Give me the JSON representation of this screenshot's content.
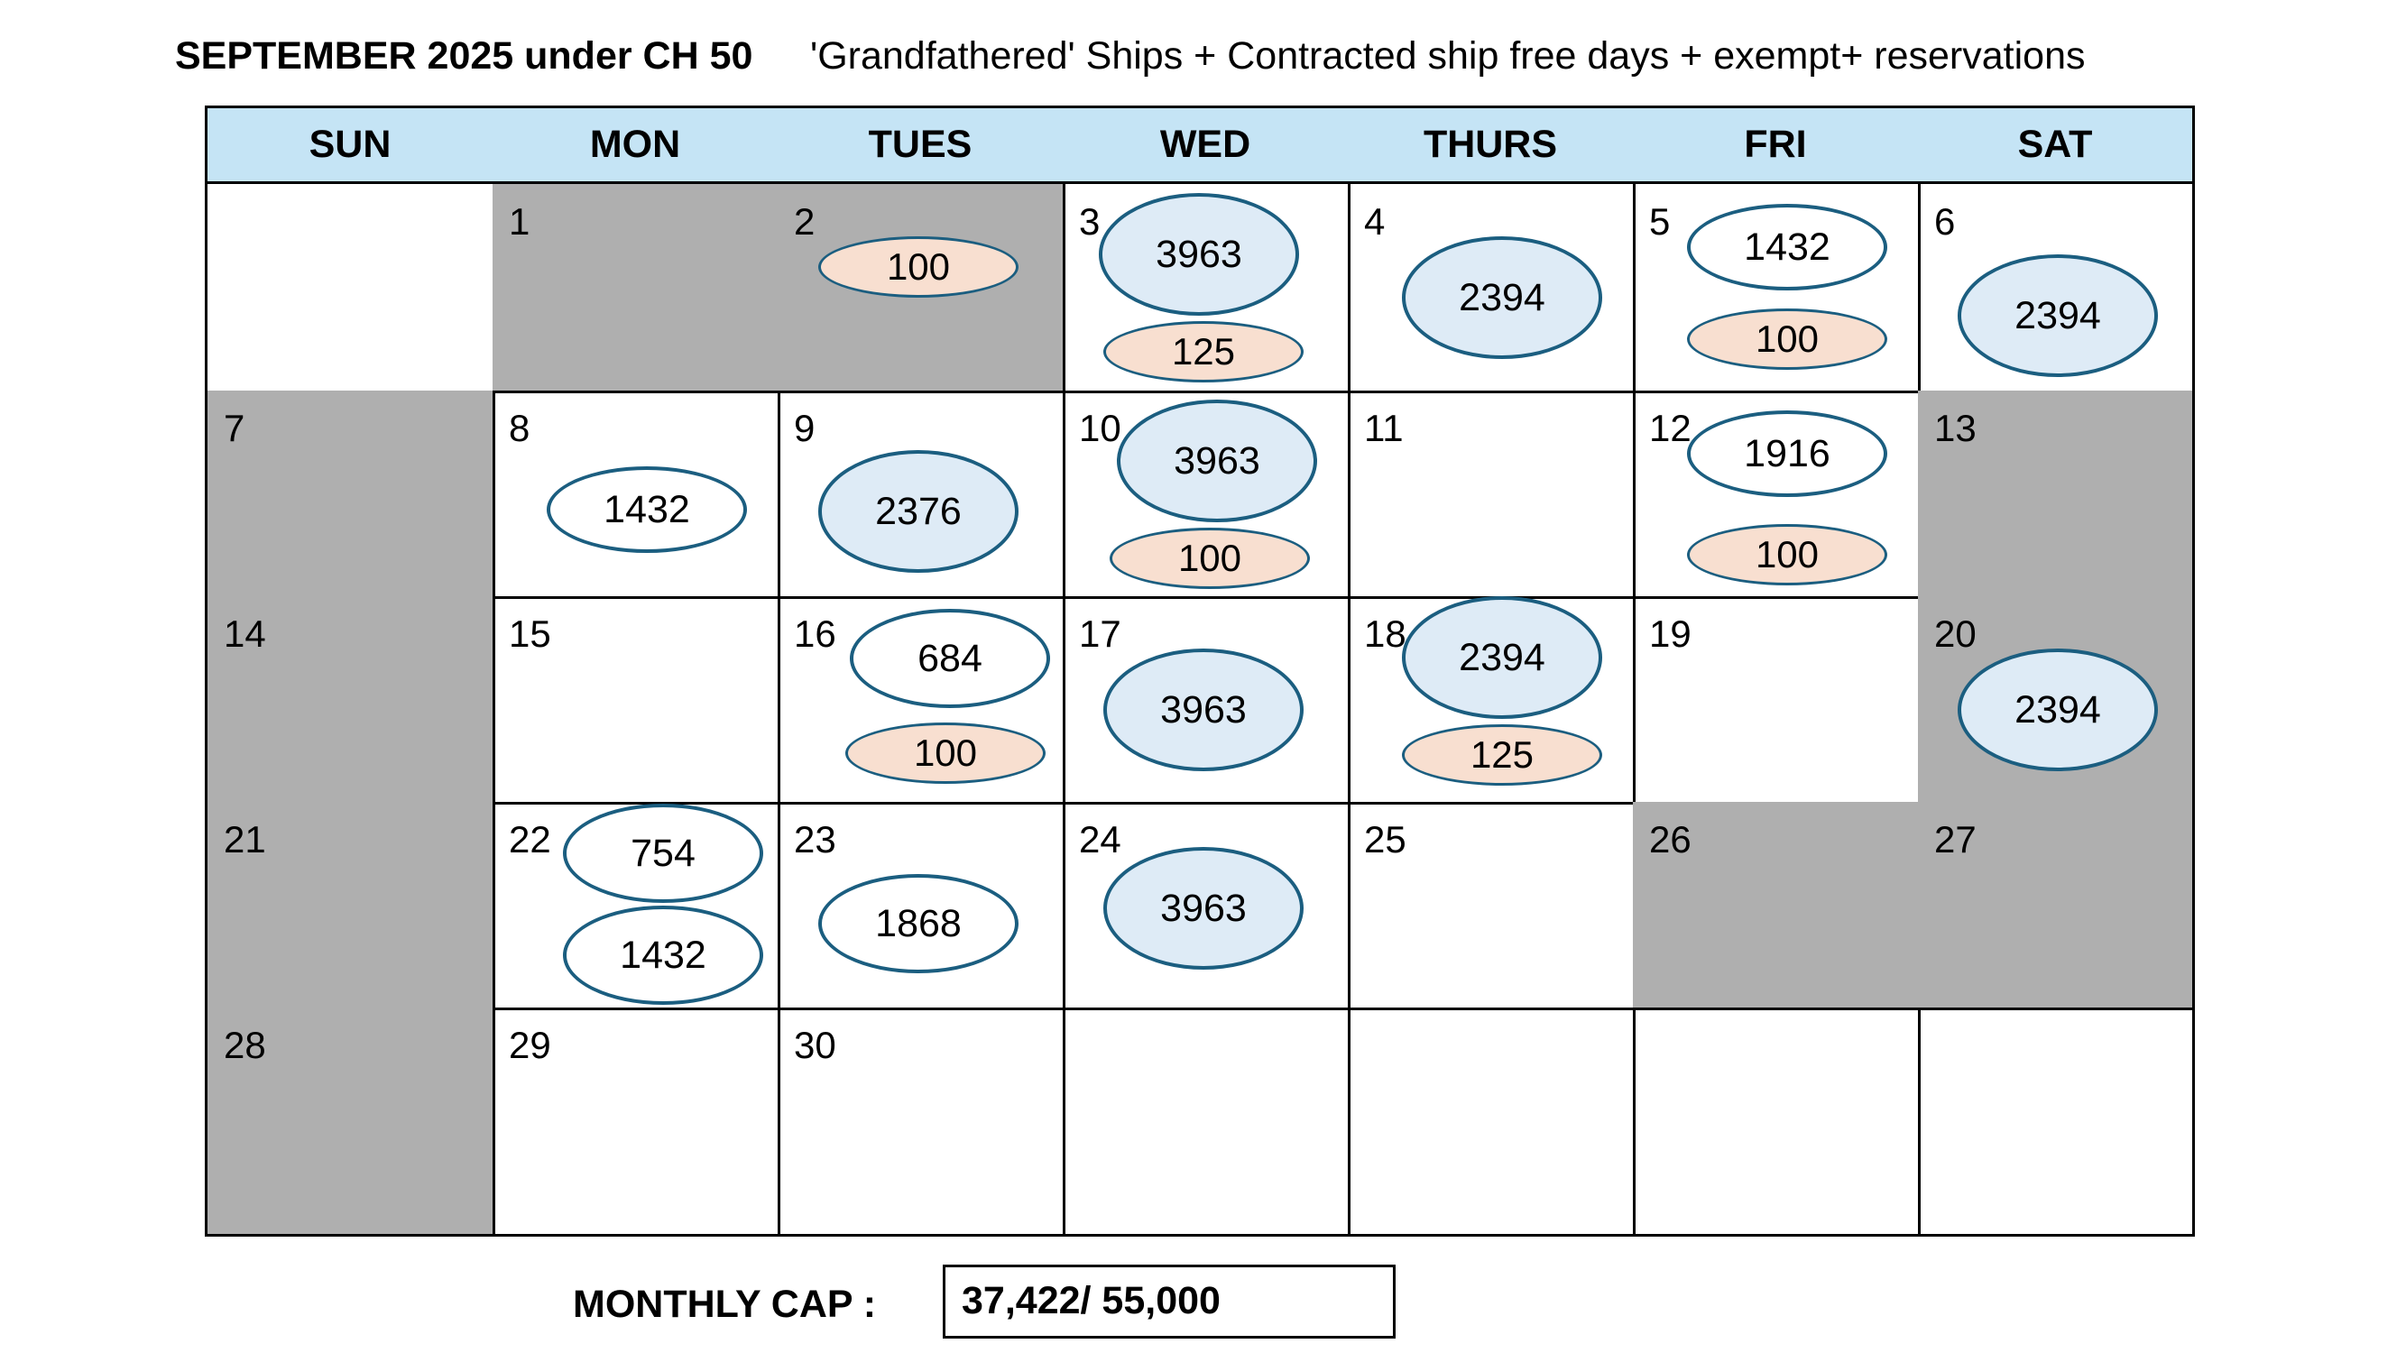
{
  "title": {
    "main": "SEPTEMBER 2025 under CH 50",
    "subtitle": "'Grandfathered' Ships  +  Contracted ship free days + exempt+ reservations"
  },
  "weekdays": [
    "SUN",
    "MON",
    "TUES",
    "WED",
    "THURS",
    "FRI",
    "SAT"
  ],
  "weeks": [
    [
      {
        "day": "",
        "gray": false,
        "ovals": []
      },
      {
        "day": "1",
        "gray": true,
        "ovals": []
      },
      {
        "day": "2",
        "gray": true,
        "ovals": [
          {
            "value": "100",
            "kind": "res"
          }
        ]
      },
      {
        "day": "3",
        "gray": false,
        "ovals": [
          {
            "value": "3963",
            "kind": "ship"
          },
          {
            "value": "125",
            "kind": "res"
          }
        ]
      },
      {
        "day": "4",
        "gray": false,
        "ovals": [
          {
            "value": "2394",
            "kind": "ship"
          }
        ]
      },
      {
        "day": "5",
        "gray": false,
        "ovals": [
          {
            "value": "1432",
            "kind": "white"
          },
          {
            "value": "100",
            "kind": "res"
          }
        ]
      },
      {
        "day": "6",
        "gray": false,
        "ovals": [
          {
            "value": "2394",
            "kind": "ship"
          }
        ]
      }
    ],
    [
      {
        "day": "7",
        "gray": true,
        "ovals": []
      },
      {
        "day": "8",
        "gray": false,
        "ovals": [
          {
            "value": "1432",
            "kind": "white"
          }
        ]
      },
      {
        "day": "9",
        "gray": false,
        "ovals": [
          {
            "value": "2376",
            "kind": "ship"
          }
        ]
      },
      {
        "day": "10",
        "gray": false,
        "ovals": [
          {
            "value": "3963",
            "kind": "ship"
          },
          {
            "value": "100",
            "kind": "res"
          }
        ]
      },
      {
        "day": "11",
        "gray": false,
        "ovals": []
      },
      {
        "day": "12",
        "gray": false,
        "ovals": [
          {
            "value": "1916",
            "kind": "white"
          },
          {
            "value": "100",
            "kind": "res"
          }
        ]
      },
      {
        "day": "13",
        "gray": true,
        "ovals": []
      }
    ],
    [
      {
        "day": "14",
        "gray": true,
        "ovals": []
      },
      {
        "day": "15",
        "gray": false,
        "ovals": []
      },
      {
        "day": "16",
        "gray": false,
        "ovals": [
          {
            "value": "684",
            "kind": "white"
          },
          {
            "value": "100",
            "kind": "res"
          }
        ]
      },
      {
        "day": "17",
        "gray": false,
        "ovals": [
          {
            "value": "3963",
            "kind": "ship"
          }
        ]
      },
      {
        "day": "18",
        "gray": false,
        "ovals": [
          {
            "value": "2394",
            "kind": "ship"
          },
          {
            "value": "125",
            "kind": "res"
          }
        ]
      },
      {
        "day": "19",
        "gray": false,
        "ovals": []
      },
      {
        "day": "20",
        "gray": true,
        "ovals": [
          {
            "value": "2394",
            "kind": "ship"
          }
        ]
      }
    ],
    [
      {
        "day": "21",
        "gray": true,
        "ovals": []
      },
      {
        "day": "22",
        "gray": false,
        "ovals": [
          {
            "value": "754",
            "kind": "white"
          },
          {
            "value": "1432",
            "kind": "white"
          }
        ]
      },
      {
        "day": "23",
        "gray": false,
        "ovals": [
          {
            "value": "1868",
            "kind": "white"
          }
        ]
      },
      {
        "day": "24",
        "gray": false,
        "ovals": [
          {
            "value": "3963",
            "kind": "ship"
          }
        ]
      },
      {
        "day": "25",
        "gray": false,
        "ovals": []
      },
      {
        "day": "26",
        "gray": true,
        "ovals": []
      },
      {
        "day": "27",
        "gray": true,
        "ovals": []
      }
    ],
    [
      {
        "day": "28",
        "gray": true,
        "ovals": []
      },
      {
        "day": "29",
        "gray": false,
        "ovals": []
      },
      {
        "day": "30",
        "gray": false,
        "ovals": []
      },
      {
        "day": "",
        "gray": false,
        "ovals": []
      },
      {
        "day": "",
        "gray": false,
        "ovals": []
      },
      {
        "day": "",
        "gray": false,
        "ovals": []
      },
      {
        "day": "",
        "gray": false,
        "ovals": []
      }
    ]
  ],
  "colors": {
    "header_bg": "#c5e4f5",
    "gray_cell": "#afafaf",
    "ship_fill": "#deebf6",
    "reservation_fill": "#f8dfd0",
    "oval_border": "#1b5e80"
  },
  "monthly_cap": {
    "label": "MONTHLY CAP :",
    "value": "37,422/ 55,000"
  }
}
